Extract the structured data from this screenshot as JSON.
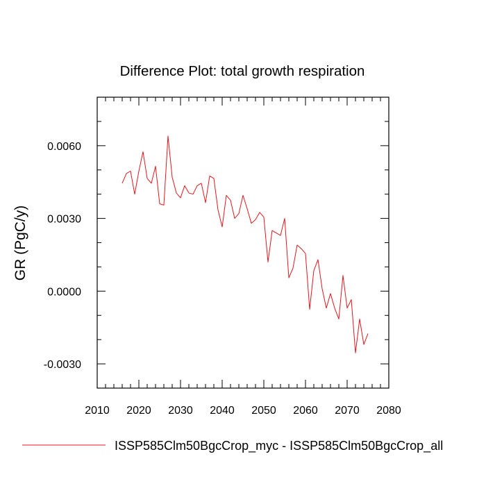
{
  "chart_data": {
    "type": "line",
    "title": "Difference Plot: total growth respiration",
    "xlabel": "",
    "ylabel": "GR  (PgC/y)",
    "xlim": [
      2010,
      2080
    ],
    "ylim": [
      -0.004,
      0.008
    ],
    "x_ticks": [
      2010,
      2020,
      2030,
      2040,
      2050,
      2060,
      2070,
      2080
    ],
    "x_tick_labels": [
      "2010",
      "2020",
      "2030",
      "2040",
      "2050",
      "2060",
      "2070",
      "2080"
    ],
    "y_ticks": [
      -0.003,
      0.0,
      0.003,
      0.006
    ],
    "y_tick_labels": [
      "-0.0030",
      "0.0000",
      "0.0030",
      "0.0060"
    ],
    "grid": false,
    "legend_position": "bottom",
    "series": [
      {
        "name": "ISSP585Clm50BgcCrop_myc - ISSP585Clm50BgcCrop_all",
        "color": "#e8141c",
        "x": [
          2016,
          2017,
          2018,
          2019,
          2020,
          2021,
          2022,
          2023,
          2024,
          2025,
          2026,
          2027,
          2028,
          2029,
          2030,
          2031,
          2032,
          2033,
          2034,
          2035,
          2036,
          2037,
          2038,
          2039,
          2040,
          2041,
          2042,
          2043,
          2044,
          2045,
          2046,
          2047,
          2048,
          2049,
          2050,
          2051,
          2052,
          2053,
          2054,
          2055,
          2056,
          2057,
          2058,
          2059,
          2060,
          2061,
          2062,
          2063,
          2064,
          2065,
          2066,
          2067,
          2068,
          2069,
          2070,
          2071,
          2072,
          2073,
          2074,
          2075
        ],
        "y": [
          0.00445,
          0.00485,
          0.00495,
          0.004,
          0.00495,
          0.00575,
          0.00465,
          0.00445,
          0.00515,
          0.0036,
          0.00355,
          0.0064,
          0.0047,
          0.00405,
          0.00385,
          0.00435,
          0.00405,
          0.004,
          0.00435,
          0.00445,
          0.00365,
          0.00475,
          0.00465,
          0.00335,
          0.00265,
          0.00395,
          0.00375,
          0.003,
          0.0032,
          0.00395,
          0.0034,
          0.0028,
          0.00295,
          0.00325,
          0.00305,
          0.0012,
          0.0025,
          0.0024,
          0.0023,
          0.003,
          0.00055,
          0.00095,
          0.0019,
          0.00175,
          0.00155,
          -0.00075,
          0.00085,
          0.0013,
          0.0001,
          -0.0007,
          -0.0001,
          -0.0007,
          -0.00115,
          0.00065,
          -0.0007,
          -0.00035,
          -0.00255,
          -0.00115,
          -0.0022,
          -0.00175
        ]
      }
    ]
  }
}
